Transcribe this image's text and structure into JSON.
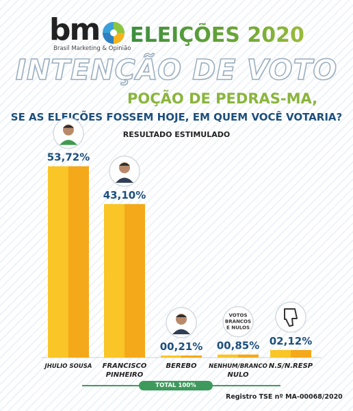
{
  "header": {
    "logo_text": "bm",
    "logo_subtitle": "Brasil Marketing & Opinião",
    "elections_title": "ELEIÇÕES 2020",
    "headline": "INTENÇÃO DE VOTO",
    "city": "POÇÃO DE PEDRAS-MA,",
    "question": "SE AS ELEIÇÕES FOSSEM HOJE, EM QUEM VOCÊ VOTARIA?",
    "subtitle": "RESULTADO ESTIMULADO"
  },
  "colors": {
    "bar_light": "#f9c527",
    "bar_dark": "#f3a91a",
    "value_text": "#1d4f7c",
    "green_accent": "#8ab53c",
    "total_pill": "#3d9a5c"
  },
  "chart_data": {
    "type": "bar",
    "categories": [
      "JHULIO SOUSA",
      "FRANCISCO PINHEIRO",
      "BEREBO",
      "NENHUM/BRANCO NULO",
      "N.S/N.RESP"
    ],
    "category_lines": [
      [
        "JHULIO SOUSA"
      ],
      [
        "FRANCISCO",
        "PINHEIRO"
      ],
      [
        "BEREBO"
      ],
      [
        "NENHUM/BRANCO",
        "NULO"
      ],
      [
        "N.S/N.RESP"
      ]
    ],
    "values": [
      53.72,
      43.1,
      0.21,
      0.85,
      2.12
    ],
    "value_labels": [
      "53,72%",
      "43,10%",
      "00,21%",
      "00,85%",
      "02,12%"
    ],
    "badge_icons": [
      "candidate-photo-icon",
      "candidate-photo-icon",
      "candidate-photo-icon",
      "blank-null-votes-icon",
      "thumbs-down-icon"
    ],
    "blank_votes_badge_lines": [
      "VOTOS",
      "BRANCOS",
      "E NULOS"
    ],
    "title": "",
    "xlabel": "",
    "ylabel": "",
    "ylim": [
      0,
      60
    ],
    "grid": false
  },
  "footer": {
    "total_label": "TOTAL 100%",
    "registry": "Registro TSE nº MA-00068/2020"
  }
}
